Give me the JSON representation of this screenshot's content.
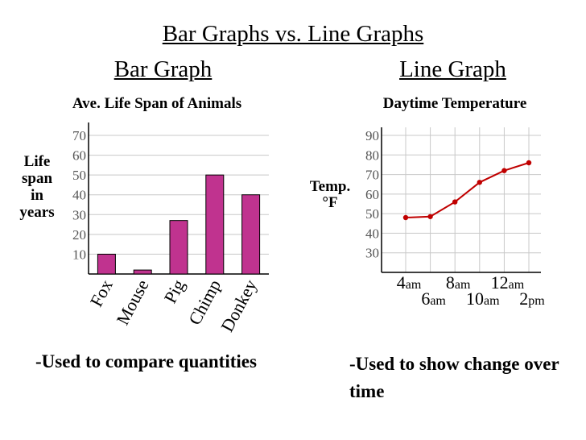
{
  "page": {
    "title": "Bar Graphs vs. Line Graphs",
    "bar_heading": "Bar Graph",
    "line_heading": "Line Graph",
    "bar_note": "-Used to compare quantities",
    "line_note": "-Used to show change over time"
  },
  "chart_data": [
    {
      "type": "bar",
      "title": "Ave. Life Span of Animals",
      "ylabel": "Life span in years",
      "ylabel_lines": [
        "Life",
        "span",
        "in",
        "years"
      ],
      "categories": [
        "Fox",
        "Mouse",
        "Pig",
        "Chimp",
        "Donkey"
      ],
      "values": [
        10,
        2,
        27,
        50,
        40
      ],
      "ylim": [
        0,
        70
      ],
      "yticks": [
        10,
        20,
        30,
        40,
        50,
        60,
        70
      ],
      "grid": true,
      "bar_color": "#c0338f"
    },
    {
      "type": "line",
      "title": "Daytime Temperature",
      "ylabel": "Temp. °F",
      "ylabel_lines": [
        "Temp.",
        "°F"
      ],
      "x": [
        "4am",
        "6am",
        "8am",
        "10am",
        "12am",
        "2pm"
      ],
      "x_labels": [
        {
          "num": "4",
          "unit": "am"
        },
        {
          "num": "6",
          "unit": "am"
        },
        {
          "num": "8",
          "unit": "am"
        },
        {
          "num": "10",
          "unit": "am"
        },
        {
          "num": "12",
          "unit": "am"
        },
        {
          "num": "2",
          "unit": "pm"
        }
      ],
      "values": [
        48,
        48.5,
        56,
        66,
        72,
        76
      ],
      "ylim": [
        20,
        90
      ],
      "yticks": [
        30,
        40,
        50,
        60,
        70,
        80,
        90
      ],
      "grid": true,
      "line_color": "#c00000"
    }
  ]
}
